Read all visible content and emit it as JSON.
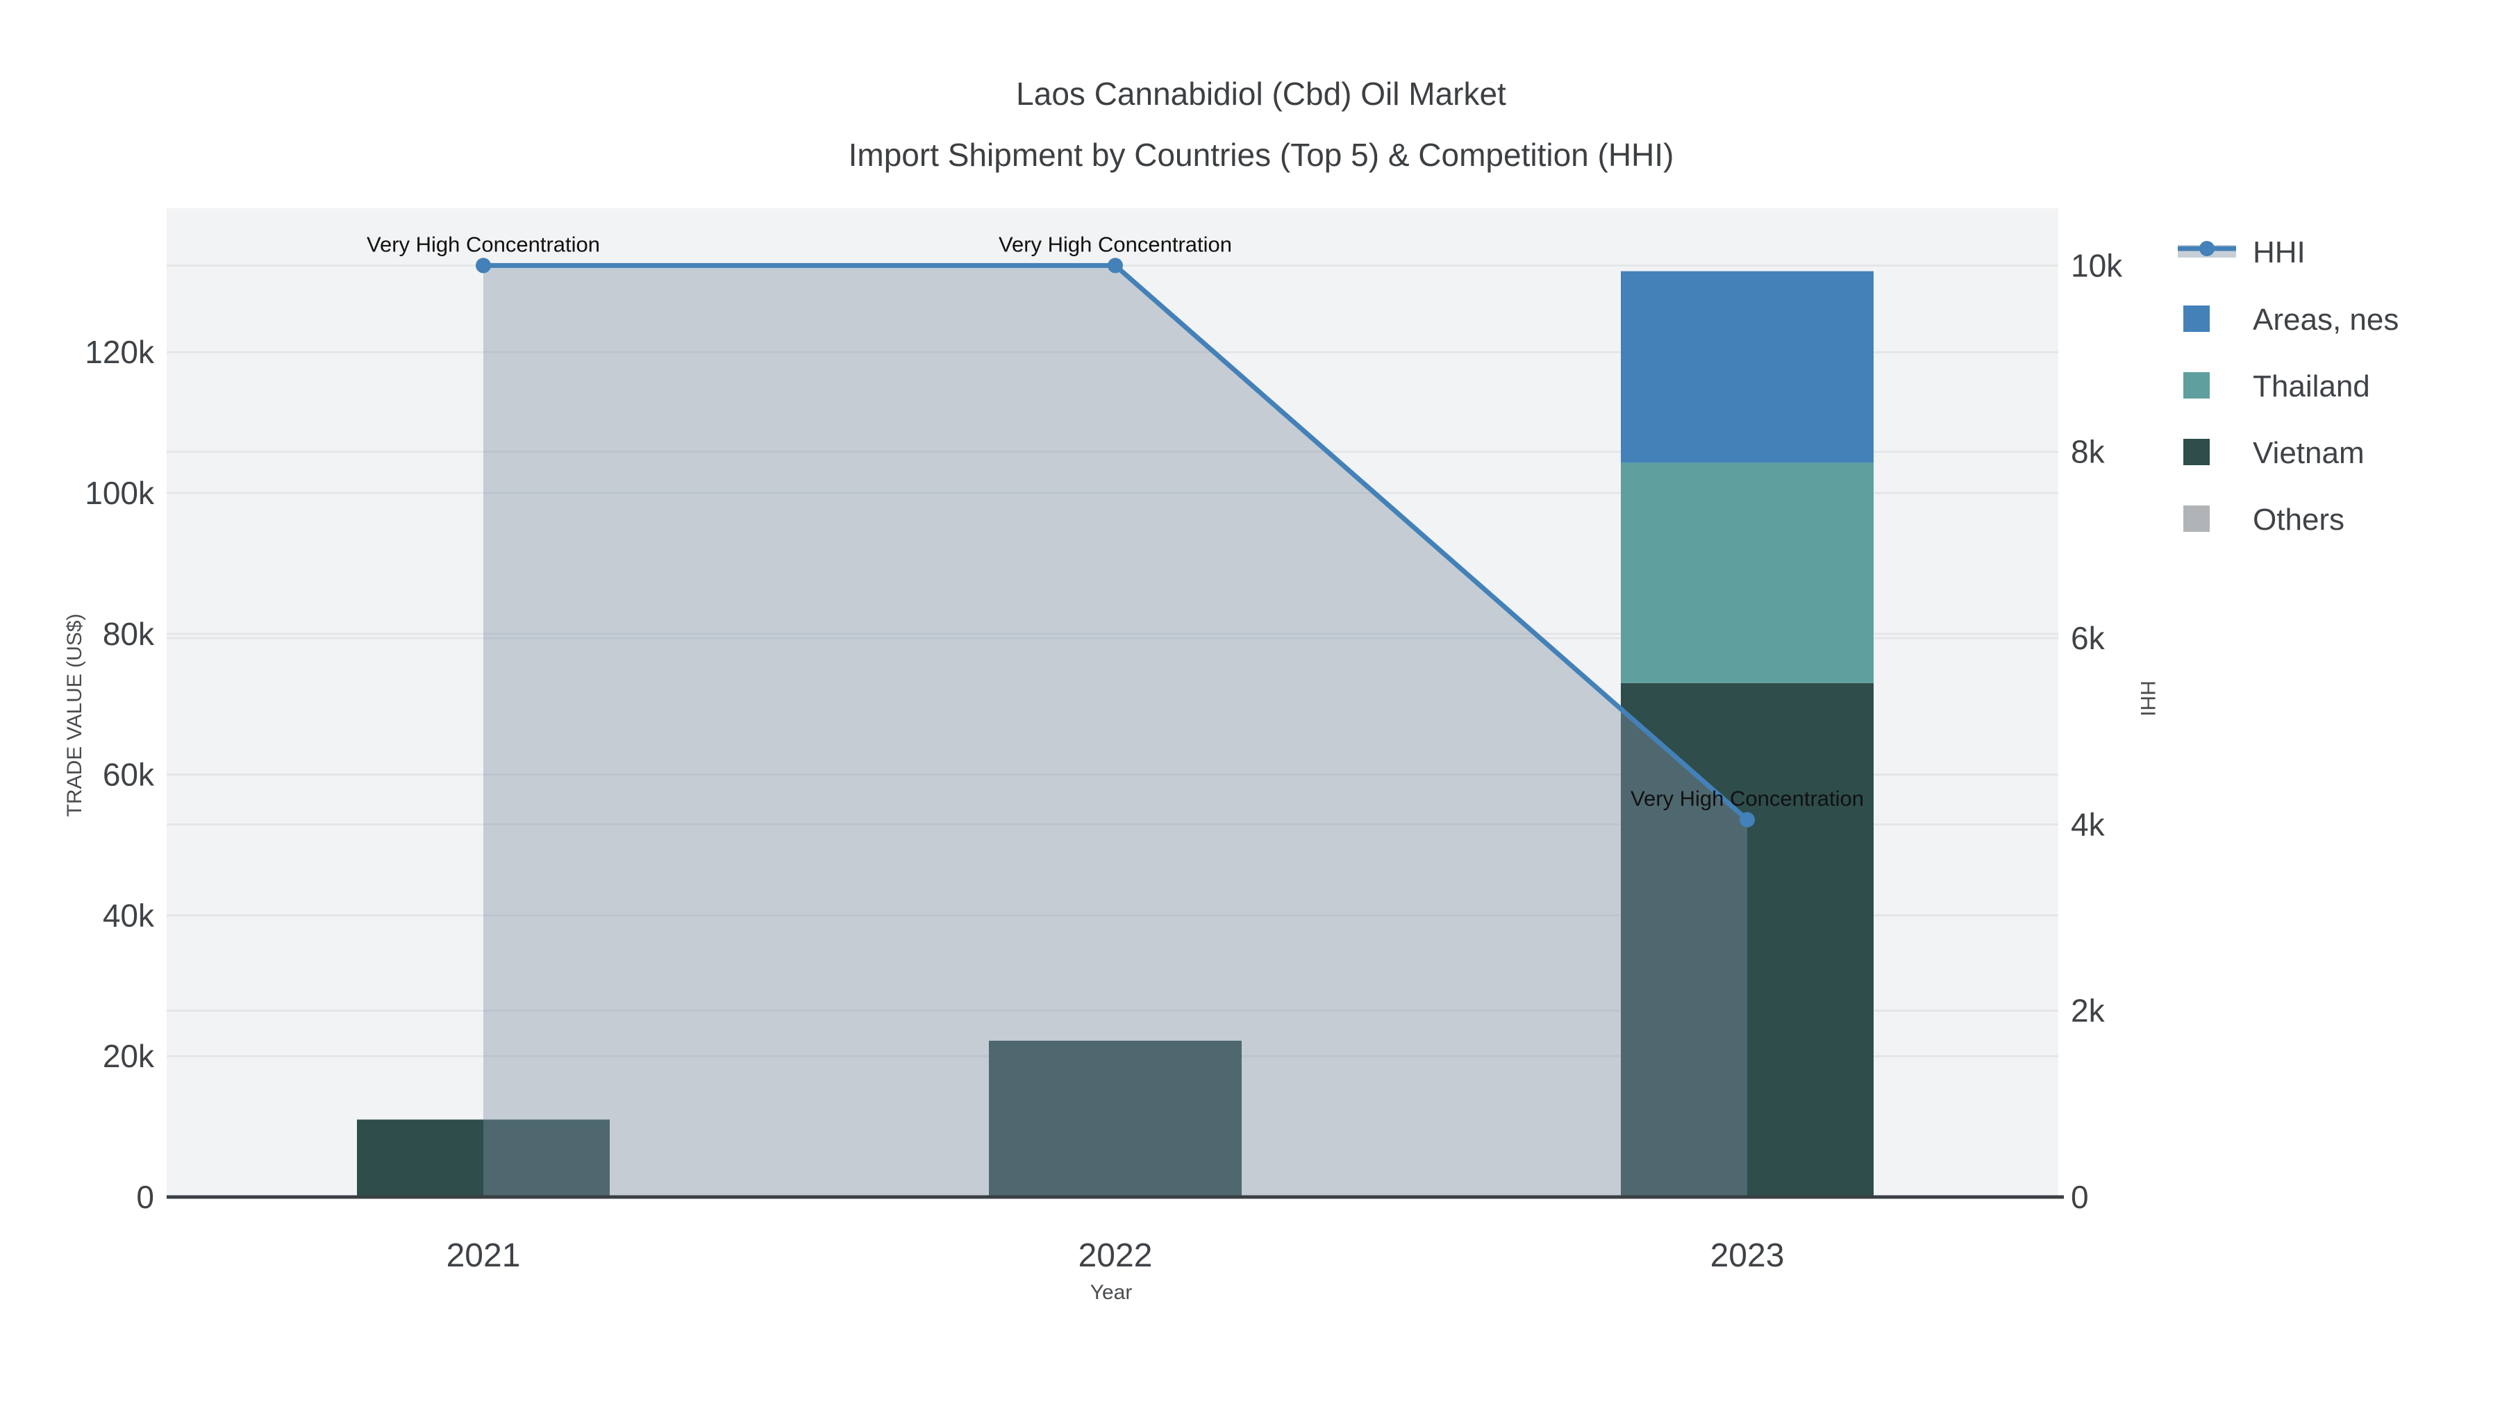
{
  "title": {
    "line1": "Laos Cannabidiol (Cbd) Oil Market",
    "line2": "Import Shipment by Countries (Top 5) & Competition (HHI)"
  },
  "axes": {
    "x": {
      "title": "Year",
      "ticks": [
        "2021",
        "2022",
        "2023"
      ]
    },
    "y_left": {
      "title": "TRADE VALUE (US$)",
      "tick_labels": [
        "0",
        "20k",
        "40k",
        "60k",
        "80k",
        "100k",
        "120k"
      ],
      "tick_values": [
        0,
        20000,
        40000,
        60000,
        80000,
        100000,
        120000
      ],
      "range": [
        0,
        140400
      ]
    },
    "y_right": {
      "title": "HHI",
      "tick_labels": [
        "0",
        "2k",
        "4k",
        "6k",
        "8k",
        "10k"
      ],
      "tick_values": [
        0,
        2000,
        4000,
        6000,
        8000,
        10000
      ],
      "range": [
        0,
        10615
      ]
    }
  },
  "legend": {
    "items": [
      {
        "label": "HHI",
        "symbol": "line-marker",
        "color": "#4381b8"
      },
      {
        "label": "Areas, nes",
        "symbol": "square",
        "color": "#4381b8"
      },
      {
        "label": "Thailand",
        "symbol": "square",
        "color": "#5fa09e"
      },
      {
        "label": "Vietnam",
        "symbol": "square",
        "color": "#2e4d4b"
      },
      {
        "label": "Others",
        "symbol": "square",
        "color": "#b1b4b6"
      }
    ]
  },
  "annotations": [
    {
      "text": "Very High Concentration",
      "category": "2021"
    },
    {
      "text": "Very High Concentration",
      "category": "2022"
    },
    {
      "text": "Very High Concentration",
      "category": "2023"
    }
  ],
  "colors": {
    "plot_bg": "#f2f3f4",
    "gridline": "#e2e4e7",
    "axis_line": "#3a3f44",
    "tick_text": "#3f4347",
    "annotation_text": "#111111",
    "hhi_line": "#4381b8",
    "hhi_fill": "rgba(130,146,164,0.40)",
    "legend_band": "rgba(130,146,164,0.45)"
  },
  "chart_data": {
    "type": "bar",
    "subtype": "stacked-bars-with-secondary-line",
    "categories": [
      "2021",
      "2022",
      "2023"
    ],
    "series": [
      {
        "name": "Areas, nes",
        "type": "bar",
        "axis": "left",
        "color": "#4381b8",
        "values": [
          0,
          0,
          27200
        ]
      },
      {
        "name": "Thailand",
        "type": "bar",
        "axis": "left",
        "color": "#5fa09e",
        "values": [
          0,
          0,
          31300
        ]
      },
      {
        "name": "Vietnam",
        "type": "bar",
        "axis": "left",
        "color": "#2e4d4b",
        "values": [
          11000,
          22200,
          73000
        ]
      },
      {
        "name": "Others",
        "type": "bar",
        "axis": "left",
        "color": "#b1b4b6",
        "values": [
          0,
          0,
          0
        ]
      },
      {
        "name": "HHI",
        "type": "line",
        "axis": "right",
        "color": "#4381b8",
        "values": [
          10000,
          10000,
          4050
        ]
      }
    ],
    "stack_order_bottom_to_top": [
      "Vietnam",
      "Thailand",
      "Areas, nes",
      "Others"
    ],
    "title": "Laos Cannabidiol (Cbd) Oil Market — Import Shipment by Countries (Top 5) & Competition (HHI)",
    "xlabel": "Year",
    "ylabel_left": "TRADE VALUE (US$)",
    "ylabel_right": "HHI",
    "ylim_left": [
      0,
      140400
    ],
    "ylim_right": [
      0,
      10615
    ],
    "grid": true,
    "legend_position": "top-right-outside"
  }
}
